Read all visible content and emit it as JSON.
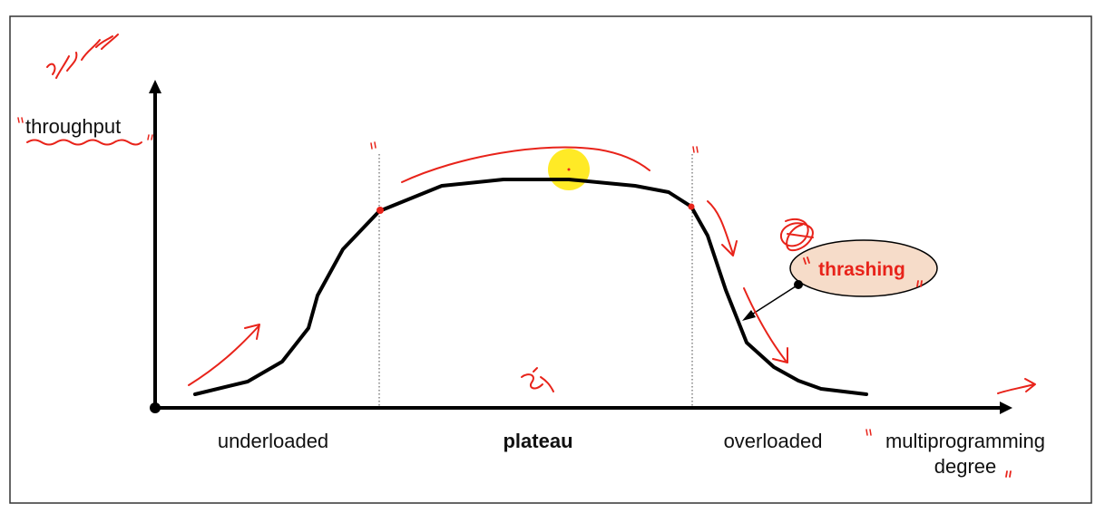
{
  "diagram": {
    "y_axis_label": "throughput",
    "x_axis_label_line1": "multiprogramming",
    "x_axis_label_line2": "degree",
    "regions": {
      "underloaded": "underloaded",
      "plateau": "plateau",
      "overloaded": "overloaded"
    },
    "callout": "thrashing",
    "handwritten_note": "sys prd",
    "colors": {
      "curve": "#000000",
      "ink": "#e8231a",
      "callout_fill": "#f6dcc9",
      "highlight": "#ffe600",
      "frame": "#333333"
    }
  }
}
